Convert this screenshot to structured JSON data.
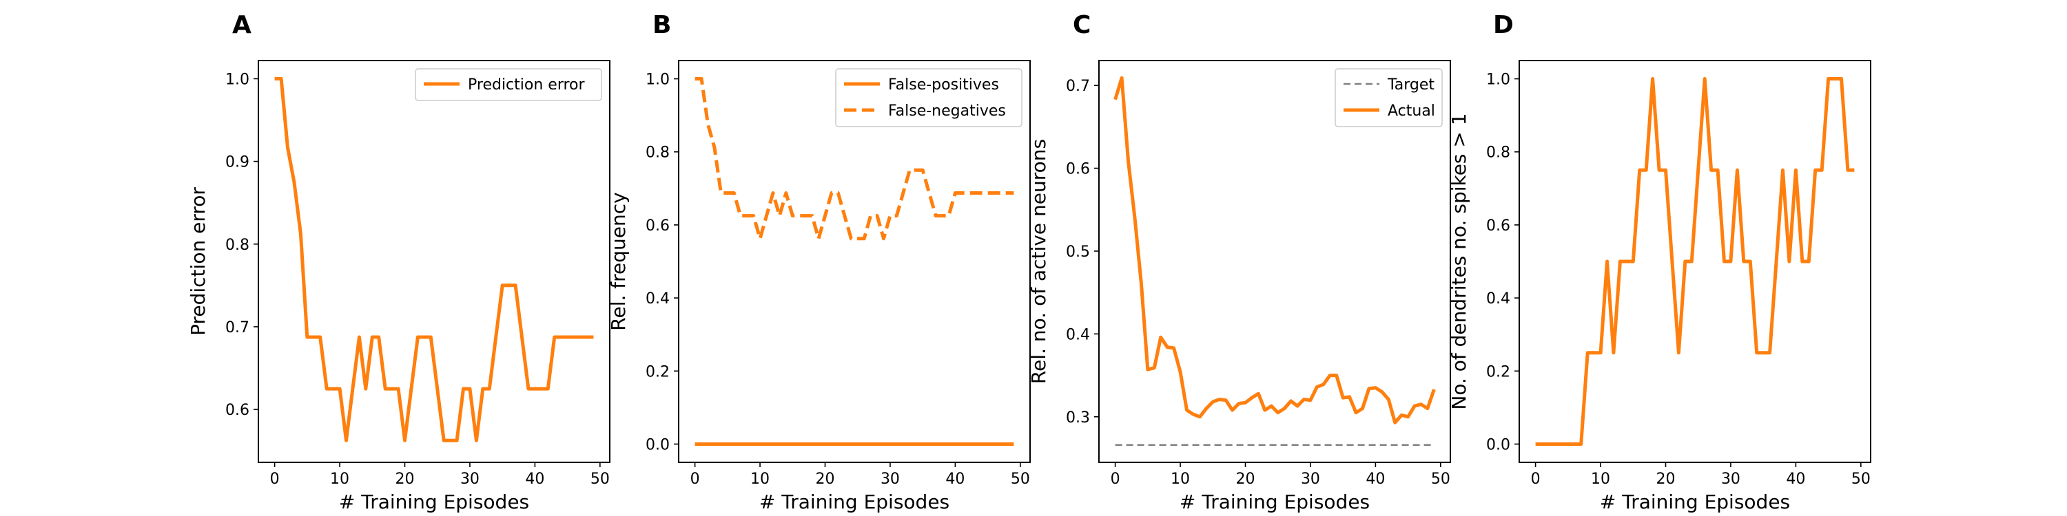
{
  "chart_data": [
    {
      "type": "line",
      "panel_letter": "A",
      "xlabel": "# Training Episodes",
      "ylabel": "Prediction error",
      "xlim": [
        -2.5,
        51.5
      ],
      "ylim": [
        0.536,
        1.022
      ],
      "xticks": [
        0,
        10,
        20,
        30,
        40,
        50
      ],
      "yticks": [
        0.6,
        0.7,
        0.8,
        0.9,
        1.0
      ],
      "ytick_labels": [
        "0.6",
        "0.7",
        "0.8",
        "0.9",
        "1.0"
      ],
      "legend_position": "upper-right",
      "grid": false,
      "series": [
        {
          "name": "Prediction error",
          "color": "#ff7f0e",
          "style": "solid",
          "x": [
            0,
            1,
            2,
            3,
            4,
            5,
            6,
            7,
            8,
            9,
            10,
            11,
            12,
            13,
            14,
            15,
            16,
            17,
            18,
            19,
            20,
            21,
            22,
            23,
            24,
            25,
            26,
            27,
            28,
            29,
            30,
            31,
            32,
            33,
            34,
            35,
            36,
            37,
            38,
            39,
            40,
            41,
            42,
            43,
            44,
            45,
            46,
            47,
            48,
            49
          ],
          "y": [
            1.0,
            1.0,
            0.9167,
            0.875,
            0.8125,
            0.6875,
            0.6875,
            0.6875,
            0.625,
            0.625,
            0.625,
            0.5625,
            0.625,
            0.6875,
            0.625,
            0.6875,
            0.6875,
            0.625,
            0.625,
            0.625,
            0.5625,
            0.625,
            0.6875,
            0.6875,
            0.6875,
            0.625,
            0.5625,
            0.5625,
            0.5625,
            0.625,
            0.625,
            0.5625,
            0.625,
            0.625,
            0.6875,
            0.75,
            0.75,
            0.75,
            0.6875,
            0.625,
            0.625,
            0.625,
            0.625,
            0.6875,
            0.6875,
            0.6875,
            0.6875,
            0.6875,
            0.6875,
            0.6875
          ]
        }
      ]
    },
    {
      "type": "line",
      "panel_letter": "B",
      "xlabel": "# Training Episodes",
      "ylabel": "Rel. frequency",
      "xlim": [
        -2.5,
        51.5
      ],
      "ylim": [
        -0.05,
        1.05
      ],
      "xticks": [
        0,
        10,
        20,
        30,
        40,
        50
      ],
      "yticks": [
        0.0,
        0.2,
        0.4,
        0.6,
        0.8,
        1.0
      ],
      "ytick_labels": [
        "0.0",
        "0.2",
        "0.4",
        "0.6",
        "0.8",
        "1.0"
      ],
      "legend_position": "upper-right",
      "grid": false,
      "series": [
        {
          "name": "False-positives",
          "color": "#ff7f0e",
          "style": "solid",
          "x": [
            0,
            1,
            2,
            3,
            4,
            5,
            6,
            7,
            8,
            9,
            10,
            11,
            12,
            13,
            14,
            15,
            16,
            17,
            18,
            19,
            20,
            21,
            22,
            23,
            24,
            25,
            26,
            27,
            28,
            29,
            30,
            31,
            32,
            33,
            34,
            35,
            36,
            37,
            38,
            39,
            40,
            41,
            42,
            43,
            44,
            45,
            46,
            47,
            48,
            49
          ],
          "y": [
            0,
            0,
            0,
            0,
            0,
            0,
            0,
            0,
            0,
            0,
            0,
            0,
            0,
            0,
            0,
            0,
            0,
            0,
            0,
            0,
            0,
            0,
            0,
            0,
            0,
            0,
            0,
            0,
            0,
            0,
            0,
            0,
            0,
            0,
            0,
            0,
            0,
            0,
            0,
            0,
            0,
            0,
            0,
            0,
            0,
            0,
            0,
            0,
            0,
            0
          ]
        },
        {
          "name": "False-negatives",
          "color": "#ff7f0e",
          "style": "dashed",
          "x": [
            0,
            1,
            2,
            3,
            4,
            5,
            6,
            7,
            8,
            9,
            10,
            11,
            12,
            13,
            14,
            15,
            16,
            17,
            18,
            19,
            20,
            21,
            22,
            23,
            24,
            25,
            26,
            27,
            28,
            29,
            30,
            31,
            32,
            33,
            34,
            35,
            36,
            37,
            38,
            39,
            40,
            41,
            42,
            43,
            44,
            45,
            46,
            47,
            48,
            49
          ],
          "y": [
            1.0,
            1.0,
            0.875,
            0.8125,
            0.6875,
            0.6875,
            0.6875,
            0.625,
            0.625,
            0.625,
            0.5625,
            0.625,
            0.6875,
            0.625,
            0.6875,
            0.625,
            0.625,
            0.625,
            0.625,
            0.5625,
            0.625,
            0.6875,
            0.6875,
            0.625,
            0.5625,
            0.5625,
            0.5625,
            0.625,
            0.625,
            0.5625,
            0.625,
            0.625,
            0.6875,
            0.75,
            0.75,
            0.75,
            0.6875,
            0.625,
            0.625,
            0.625,
            0.6875,
            0.6875,
            0.6875,
            0.6875,
            0.6875,
            0.6875,
            0.6875,
            0.6875,
            0.6875,
            0.6875
          ]
        }
      ]
    },
    {
      "type": "line",
      "panel_letter": "C",
      "xlabel": "# Training Episodes",
      "ylabel": "Rel. no. of active neurons",
      "xlim": [
        -2.5,
        51.5
      ],
      "ylim": [
        0.245,
        0.73
      ],
      "xticks": [
        0,
        10,
        20,
        30,
        40,
        50
      ],
      "yticks": [
        0.3,
        0.4,
        0.5,
        0.6,
        0.7
      ],
      "ytick_labels": [
        "0.3",
        "0.4",
        "0.5",
        "0.6",
        "0.7"
      ],
      "legend_position": "upper-right",
      "grid": false,
      "series": [
        {
          "name": "Target",
          "color": "#808080",
          "style": "dashed",
          "x": [
            0,
            49
          ],
          "y": [
            0.266,
            0.266
          ]
        },
        {
          "name": "Actual",
          "color": "#ff7f0e",
          "style": "solid",
          "x": [
            0,
            1,
            2,
            3,
            4,
            5,
            6,
            7,
            8,
            9,
            10,
            11,
            12,
            13,
            14,
            15,
            16,
            17,
            18,
            19,
            20,
            21,
            22,
            23,
            24,
            25,
            26,
            27,
            28,
            29,
            30,
            31,
            32,
            33,
            34,
            35,
            36,
            37,
            38,
            39,
            40,
            41,
            42,
            43,
            44,
            45,
            46,
            47,
            48,
            49
          ],
          "y": [
            0.683,
            0.709,
            0.609,
            0.541,
            0.461,
            0.357,
            0.359,
            0.396,
            0.384,
            0.383,
            0.354,
            0.308,
            0.303,
            0.3,
            0.31,
            0.318,
            0.321,
            0.32,
            0.308,
            0.316,
            0.317,
            0.323,
            0.328,
            0.308,
            0.313,
            0.305,
            0.31,
            0.319,
            0.313,
            0.321,
            0.32,
            0.336,
            0.339,
            0.35,
            0.35,
            0.323,
            0.324,
            0.305,
            0.31,
            0.334,
            0.335,
            0.33,
            0.321,
            0.293,
            0.302,
            0.3,
            0.313,
            0.315,
            0.31,
            0.333
          ]
        }
      ]
    },
    {
      "type": "line",
      "panel_letter": "D",
      "xlabel": "# Training Episodes",
      "ylabel": "No. of dendrites no. spikes > 1",
      "xlim": [
        -2.5,
        51.5
      ],
      "ylim": [
        -0.05,
        1.05
      ],
      "xticks": [
        0,
        10,
        20,
        30,
        40,
        50
      ],
      "yticks": [
        0.0,
        0.2,
        0.4,
        0.6,
        0.8,
        1.0
      ],
      "ytick_labels": [
        "0.0",
        "0.2",
        "0.4",
        "0.6",
        "0.8",
        "1.0"
      ],
      "legend_position": "none",
      "grid": false,
      "series": [
        {
          "color": "#ff7f0e",
          "style": "solid",
          "x": [
            0,
            1,
            2,
            3,
            4,
            5,
            6,
            7,
            8,
            9,
            10,
            11,
            12,
            13,
            14,
            15,
            16,
            17,
            18,
            19,
            20,
            21,
            22,
            23,
            24,
            25,
            26,
            27,
            28,
            29,
            30,
            31,
            32,
            33,
            34,
            35,
            36,
            37,
            38,
            39,
            40,
            41,
            42,
            43,
            44,
            45,
            46,
            47,
            48,
            49
          ],
          "y": [
            0,
            0,
            0,
            0,
            0,
            0,
            0,
            0,
            0.25,
            0.25,
            0.25,
            0.5,
            0.25,
            0.5,
            0.5,
            0.5,
            0.75,
            0.75,
            1.0,
            0.75,
            0.75,
            0.5,
            0.25,
            0.5,
            0.5,
            0.75,
            1.0,
            0.75,
            0.75,
            0.5,
            0.5,
            0.75,
            0.5,
            0.5,
            0.25,
            0.25,
            0.25,
            0.5,
            0.75,
            0.5,
            0.75,
            0.5,
            0.5,
            0.75,
            0.75,
            1.0,
            1.0,
            1.0,
            0.75,
            0.75
          ]
        }
      ]
    }
  ]
}
